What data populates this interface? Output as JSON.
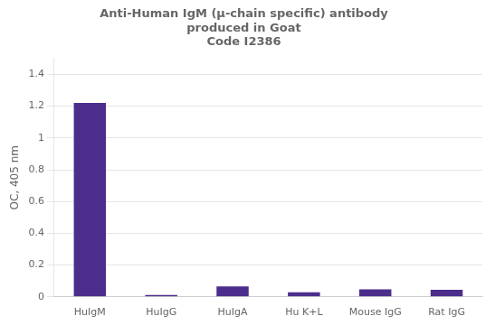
{
  "chart_data": {
    "type": "bar",
    "title": [
      "Anti-Human IgM (μ-chain specific) antibody",
      "produced in Goat",
      "Code I2386"
    ],
    "y_label": "OC, 405 nm",
    "categories": [
      "HuIgM",
      "HuIgG",
      "HuIgA",
      "Hu K+L",
      "Mouse IgG",
      "Rat IgG"
    ],
    "values": [
      1.22,
      0.012,
      0.065,
      0.028,
      0.047,
      0.045
    ],
    "color": "#4B2D8B",
    "ylim": [
      0,
      1.5
    ],
    "yticks": [
      0,
      0.2,
      0.4,
      0.6,
      0.8,
      1,
      1.2,
      1.4
    ],
    "grid": true
  }
}
